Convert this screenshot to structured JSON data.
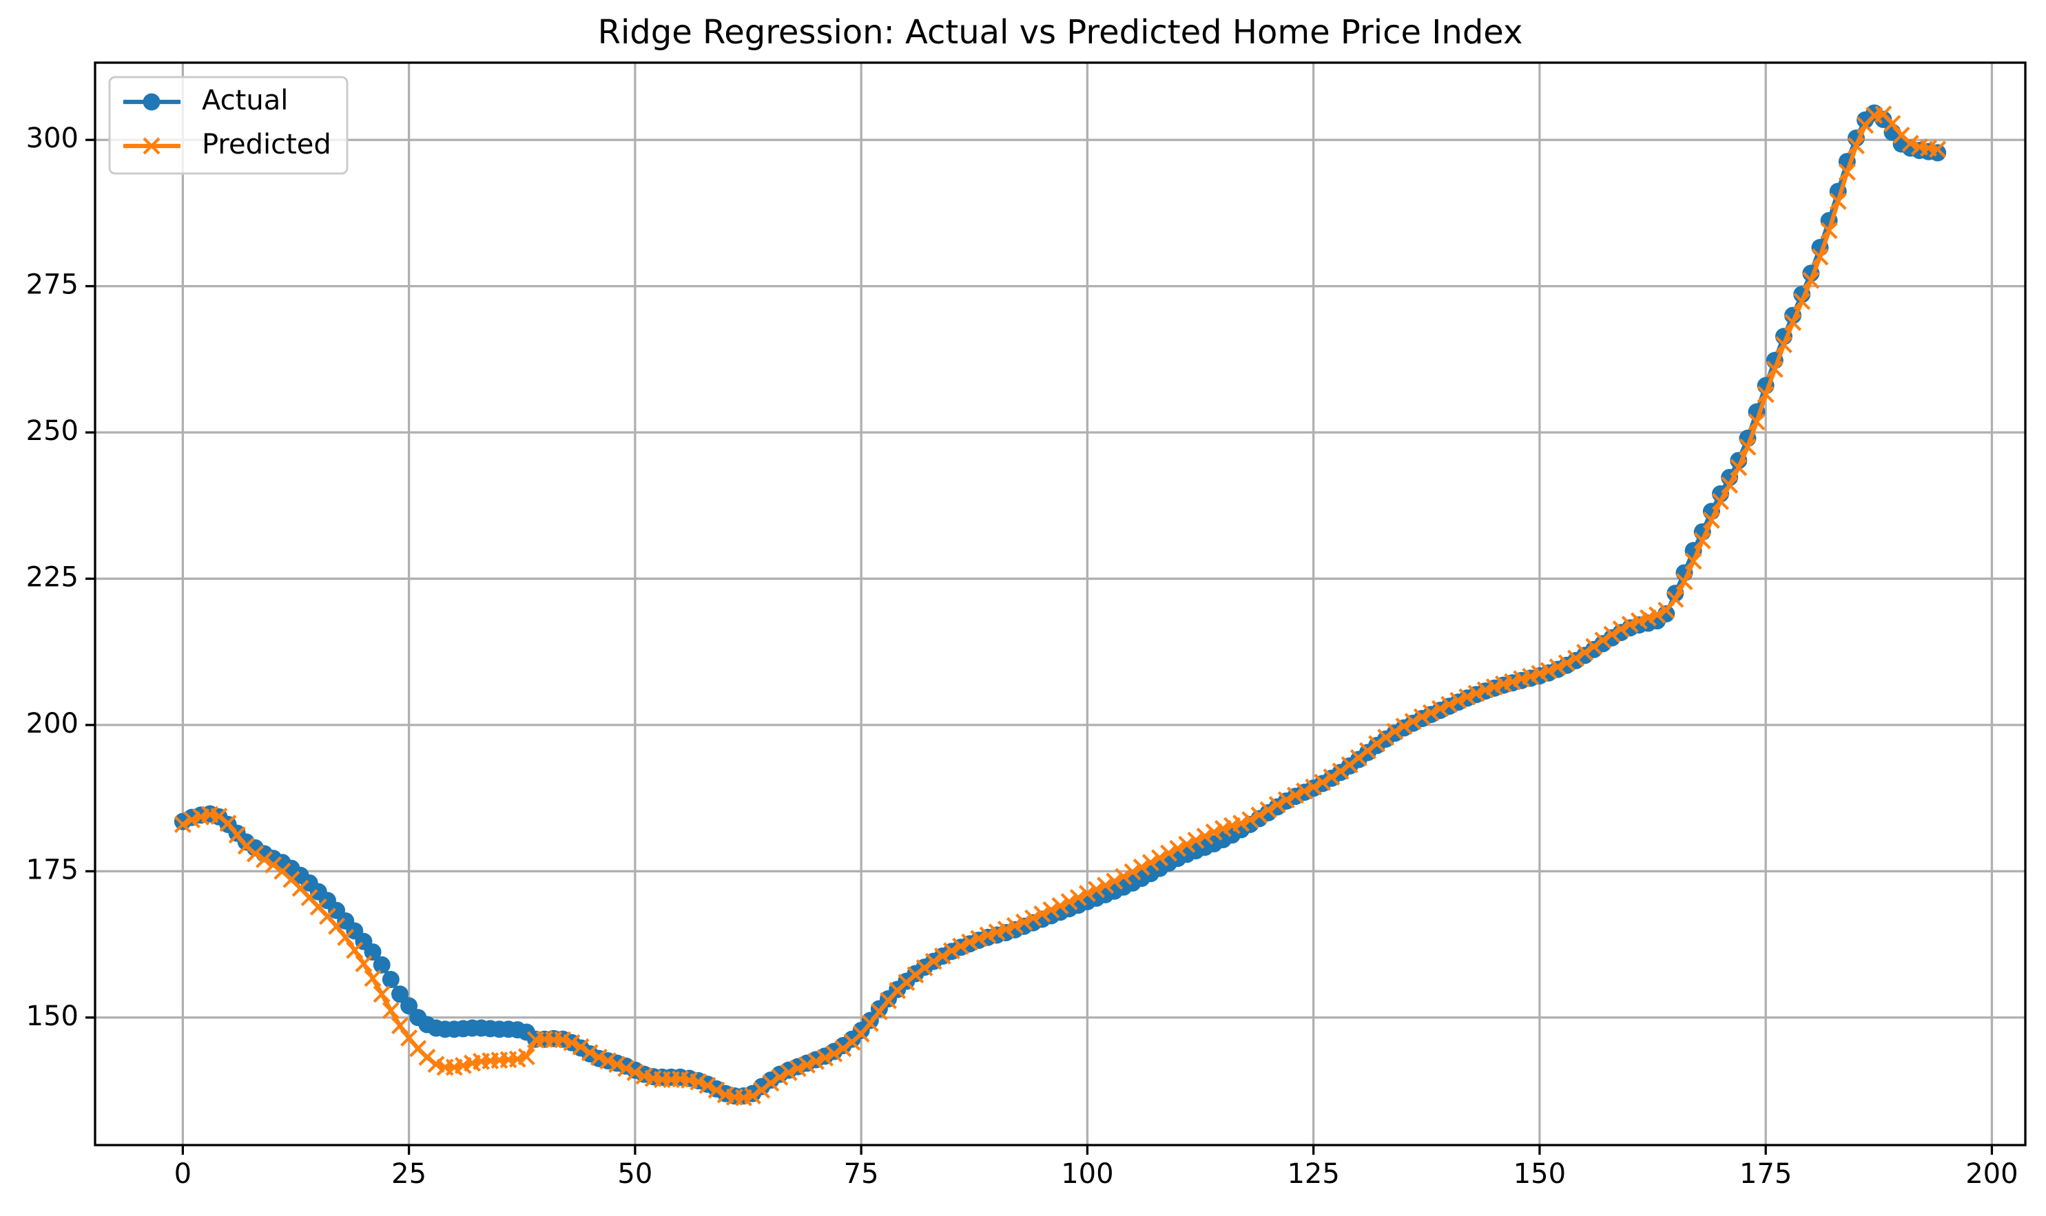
{
  "chart_data": {
    "type": "line",
    "title": "Ridge Regression: Actual vs Predicted Home Price Index",
    "x": [
      0,
      1,
      2,
      3,
      4,
      5,
      6,
      7,
      8,
      9,
      10,
      11,
      12,
      13,
      14,
      15,
      16,
      17,
      18,
      19,
      20,
      21,
      22,
      23,
      24,
      25,
      26,
      27,
      28,
      29,
      30,
      31,
      32,
      33,
      34,
      35,
      36,
      37,
      38,
      39,
      40,
      41,
      42,
      43,
      44,
      45,
      46,
      47,
      48,
      49,
      50,
      51,
      52,
      53,
      54,
      55,
      56,
      57,
      58,
      59,
      60,
      61,
      62,
      63,
      64,
      65,
      66,
      67,
      68,
      69,
      70,
      71,
      72,
      73,
      74,
      75,
      76,
      77,
      78,
      79,
      80,
      81,
      82,
      83,
      84,
      85,
      86,
      87,
      88,
      89,
      90,
      91,
      92,
      93,
      94,
      95,
      96,
      97,
      98,
      99,
      100,
      101,
      102,
      103,
      104,
      105,
      106,
      107,
      108,
      109,
      110,
      111,
      112,
      113,
      114,
      115,
      116,
      117,
      118,
      119,
      120,
      121,
      122,
      123,
      124,
      125,
      126,
      127,
      128,
      129,
      130,
      131,
      132,
      133,
      134,
      135,
      136,
      137,
      138,
      139,
      140,
      141,
      142,
      143,
      144,
      145,
      146,
      147,
      148,
      149,
      150,
      151,
      152,
      153,
      154,
      155,
      156,
      157,
      158,
      159,
      160,
      161,
      162,
      163,
      164,
      165,
      166,
      167,
      168,
      169,
      170,
      171,
      172,
      173,
      174,
      175,
      176,
      177,
      178,
      179,
      180,
      181,
      182,
      183,
      184,
      185,
      186,
      187,
      188,
      189,
      190,
      191,
      192,
      193,
      194
    ],
    "series": [
      {
        "name": "Actual",
        "color": "#1f77b4",
        "marker": "o",
        "values": [
          183.5,
          184.2,
          184.6,
          184.8,
          184.3,
          183,
          181.5,
          180,
          179,
          178,
          177.2,
          176.5,
          175.5,
          174.3,
          173,
          171.5,
          170,
          168.3,
          166.5,
          164.8,
          163,
          161.2,
          159,
          156.5,
          154,
          152,
          150,
          148.8,
          148.2,
          148,
          148,
          148.1,
          148.2,
          148.2,
          148.1,
          148,
          148,
          147.9,
          147.5,
          146.3,
          146.3,
          146.4,
          146.3,
          145.7,
          144.8,
          143.8,
          143,
          142.6,
          142.2,
          141.7,
          141,
          140.3,
          139.9,
          139.8,
          139.8,
          139.8,
          139.6,
          139.2,
          138.6,
          137.8,
          137,
          136.6,
          136.6,
          137,
          138.2,
          139.3,
          140.3,
          141,
          141.6,
          142.2,
          142.8,
          143.4,
          144.2,
          145.2,
          146.3,
          147.8,
          149.5,
          151.5,
          153.2,
          154.8,
          156.2,
          157.5,
          158.6,
          159.6,
          160.5,
          161.3,
          162,
          162.6,
          163.2,
          163.7,
          164.1,
          164.5,
          165,
          165.6,
          166.2,
          166.8,
          167.4,
          168,
          168.6,
          169.2,
          169.8,
          170.4,
          171,
          171.6,
          172.3,
          173,
          173.8,
          174.6,
          175.5,
          176.4,
          177.2,
          177.9,
          178.5,
          179.1,
          179.7,
          180.4,
          181.2,
          182.1,
          183,
          184,
          185,
          186,
          187,
          187.8,
          188.5,
          189.2,
          190,
          190.9,
          191.9,
          193,
          194.1,
          195.3,
          196.5,
          197.6,
          198.6,
          199.5,
          200.3,
          201.1,
          201.8,
          202.5,
          203.2,
          203.9,
          204.6,
          205.2,
          205.8,
          206.3,
          206.8,
          207.2,
          207.6,
          208,
          208.4,
          208.9,
          209.5,
          210.2,
          211,
          211.9,
          212.9,
          213.9,
          214.9,
          215.8,
          216.6,
          217.1,
          217.4,
          217.8,
          219,
          222.5,
          226,
          229.8,
          233,
          236.5,
          239.5,
          242.3,
          245.2,
          249,
          253.5,
          258,
          262.3,
          266.4,
          270,
          273.6,
          277.2,
          281.6,
          286.2,
          291.2,
          296.3,
          300.3,
          303.4,
          304.6,
          303.5,
          301.3,
          299.3,
          298.6,
          298.2,
          298,
          297.8
        ]
      },
      {
        "name": "Predicted",
        "color": "#ff7f0e",
        "marker": "x",
        "values": [
          183,
          183.8,
          184.3,
          184.7,
          184.4,
          183.2,
          181.2,
          179.3,
          178,
          177,
          176.1,
          175,
          173.6,
          172.1,
          170.5,
          168.9,
          167.3,
          165.6,
          163.7,
          161.5,
          159.2,
          156.7,
          154,
          151.2,
          148.6,
          146.5,
          144.7,
          143.2,
          142,
          141.5,
          141.5,
          141.8,
          142.2,
          142.5,
          142.6,
          142.7,
          142.8,
          142.9,
          143.3,
          146.2,
          146.3,
          146.2,
          146.2,
          145.7,
          145,
          144,
          143.2,
          142.6,
          142,
          141.3,
          140.6,
          140,
          139.6,
          139.4,
          139.4,
          139.5,
          139.3,
          139,
          138.4,
          137.6,
          136.8,
          136.4,
          136.3,
          136.6,
          137.6,
          138.8,
          139.8,
          140.6,
          141.3,
          141.9,
          142.5,
          143.1,
          143.8,
          144.7,
          145.8,
          147.2,
          149,
          151,
          152.9,
          154.6,
          156,
          157.3,
          158.5,
          159.6,
          160.5,
          161.4,
          162.2,
          162.9,
          163.5,
          164.1,
          164.6,
          165.1,
          165.7,
          166.3,
          167,
          167.7,
          168.4,
          169.1,
          169.8,
          170.5,
          171.2,
          171.9,
          172.6,
          173.3,
          174.1,
          174.9,
          175.7,
          176.5,
          177.3,
          178.1,
          178.9,
          179.6,
          180.3,
          181,
          181.7,
          182.3,
          182.8,
          183.2,
          183.8,
          184.6,
          185.5,
          186.4,
          187.2,
          188,
          188.7,
          189.4,
          190.2,
          191.1,
          192.1,
          193.2,
          194.4,
          195.6,
          196.8,
          197.9,
          198.9,
          199.8,
          200.6,
          201.4,
          202.1,
          202.8,
          203.5,
          204.2,
          204.8,
          205.4,
          206,
          206.5,
          207,
          207.4,
          207.9,
          208.3,
          208.8,
          209.3,
          209.9,
          210.6,
          211.4,
          212.4,
          213.4,
          214.5,
          215.5,
          216.4,
          217.2,
          217.8,
          218.3,
          218.8,
          219.6,
          221.5,
          224.5,
          228,
          231.5,
          235,
          238.2,
          241,
          244,
          247.5,
          251.8,
          256.5,
          260.8,
          265,
          268.8,
          272.4,
          276,
          280,
          284.5,
          289.5,
          294.5,
          299,
          302.5,
          304.2,
          304.4,
          302.8,
          300.8,
          299.4,
          298.8,
          298.6,
          298.4
        ]
      }
    ],
    "xlim": [
      -9.7,
      203.7
    ],
    "ylim": [
      128.2,
      313.2
    ],
    "xticks": [
      0,
      25,
      50,
      75,
      100,
      125,
      150,
      175,
      200
    ],
    "yticks": [
      150,
      175,
      200,
      225,
      250,
      275,
      300
    ],
    "grid": true,
    "legend": "upper left"
  }
}
